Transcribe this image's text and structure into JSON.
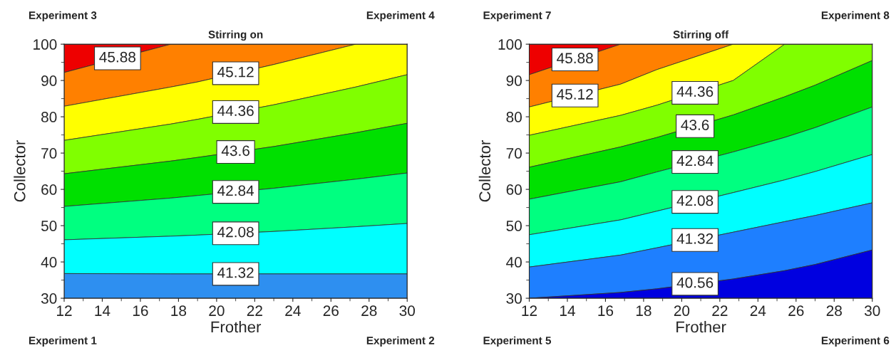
{
  "chart_data": [
    {
      "type": "area",
      "title": "Stirring on",
      "xlabel": "Frother",
      "ylabel": "Collector",
      "xlim": [
        12,
        30
      ],
      "ylim": [
        30,
        100
      ],
      "xticks": [
        12,
        14,
        16,
        18,
        20,
        22,
        24,
        26,
        28,
        30
      ],
      "yticks": [
        30,
        40,
        50,
        60,
        70,
        80,
        90,
        100
      ],
      "x": [
        12,
        17.6,
        19,
        23,
        27.3,
        30
      ],
      "series": [
        {
          "color": "#2e8ff0",
          "values": [
            36.8,
            36.7,
            36.7,
            36.7,
            36.7,
            36.7
          ]
        },
        {
          "color": "#00ffff",
          "values": [
            46.1,
            47.1,
            47.4,
            48.4,
            49.7,
            50.6
          ]
        },
        {
          "color": "#00ff80",
          "values": [
            55.3,
            57.6,
            58.3,
            60.3,
            62.8,
            64.5
          ]
        },
        {
          "color": "#00e000",
          "values": [
            64.3,
            67.8,
            68.8,
            71.8,
            75.6,
            78.2
          ]
        },
        {
          "color": "#80ff00",
          "values": [
            73.5,
            78.0,
            79.3,
            83.3,
            88.2,
            91.6
          ]
        },
        {
          "color": "#ffff00",
          "values": [
            82.9,
            88.2,
            89.6,
            94.4,
            100,
            100
          ]
        },
        {
          "color": "#ff8000",
          "values": [
            92.2,
            100,
            100,
            100,
            100,
            100
          ]
        },
        {
          "color": "#ee0000",
          "values": [
            100,
            100,
            100,
            100,
            100,
            100
          ]
        }
      ],
      "annotations": [
        "Experiment 3",
        "Experiment 4",
        "Experiment 1",
        "Experiment 2",
        {
          "text": "41.32",
          "x": 21,
          "y": 36.7
        },
        {
          "text": "42.08",
          "x": 21,
          "y": 47.9
        },
        {
          "text": "42.84",
          "x": 21,
          "y": 59.3
        },
        {
          "text": "43.6",
          "x": 21,
          "y": 70.3
        },
        {
          "text": "44.36",
          "x": 21,
          "y": 81.3
        },
        {
          "text": "45.12",
          "x": 21,
          "y": 92.0
        },
        {
          "text": "45.88",
          "x": 14.8,
          "y": 96.1
        }
      ]
    },
    {
      "type": "area",
      "title": "Stirring off",
      "xlabel": "Frother",
      "ylabel": "Collector",
      "xlim": [
        12,
        30
      ],
      "ylim": [
        30,
        100
      ],
      "xticks": [
        12,
        14,
        16,
        18,
        20,
        22,
        24,
        26,
        28,
        30
      ],
      "yticks": [
        30,
        40,
        50,
        60,
        70,
        80,
        90,
        100
      ],
      "x": [
        12,
        16.8,
        18.7,
        22.7,
        25.4,
        27,
        30
      ],
      "series": [
        {
          "color": "#0000e0",
          "values": [
            30,
            31.6,
            32.6,
            35.3,
            37.6,
            39.3,
            43.3
          ]
        },
        {
          "color": "#1e7fff",
          "values": [
            38.6,
            41.9,
            43.9,
            48.2,
            51.1,
            52.8,
            56.3
          ]
        },
        {
          "color": "#00ffff",
          "values": [
            47.5,
            51.6,
            54.0,
            59.1,
            62.6,
            64.9,
            69.6
          ]
        },
        {
          "color": "#00ff80",
          "values": [
            57.3,
            62.1,
            64.8,
            70.3,
            74.3,
            77.0,
            82.7
          ]
        },
        {
          "color": "#00e000",
          "values": [
            66.1,
            71.7,
            74.3,
            80.5,
            85.5,
            88.7,
            95.5
          ]
        },
        {
          "color": "#80ff00",
          "values": [
            74.9,
            80.4,
            83.2,
            90.0,
            100,
            100,
            100
          ]
        },
        {
          "color": "#ffff00",
          "values": [
            82.7,
            89.0,
            93.0,
            100,
            100,
            100,
            100
          ]
        },
        {
          "color": "#ff8000",
          "values": [
            91.6,
            100,
            100,
            100,
            100,
            100,
            100
          ]
        },
        {
          "color": "#ee0000",
          "values": [
            100,
            100,
            100,
            100,
            100,
            100,
            100
          ]
        }
      ],
      "annotations": [
        "Experiment 7",
        "Experiment 8",
        "Experiment 5",
        "Experiment 6",
        {
          "text": "40.56",
          "x": 20.7,
          "y": 33.95
        },
        {
          "text": "41.32",
          "x": 20.7,
          "y": 46.05
        },
        {
          "text": "42.08",
          "x": 20.7,
          "y": 56.55
        },
        {
          "text": "42.84",
          "x": 20.7,
          "y": 67.55
        },
        {
          "text": "43.6",
          "x": 20.7,
          "y": 77.4
        },
        {
          "text": "44.36",
          "x": 20.7,
          "y": 86.6
        },
        {
          "text": "45.12",
          "x": 14.4,
          "y": 85.85
        },
        {
          "text": "45.88",
          "x": 14.4,
          "y": 95.8
        }
      ]
    }
  ]
}
